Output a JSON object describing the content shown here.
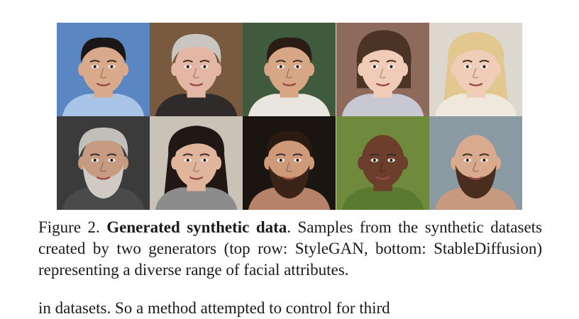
{
  "figure": {
    "rows": [
      {
        "faces": [
          {
            "bg": "#5a86c2",
            "skin": "#d9a98b",
            "hair": "#1b1716",
            "shirt": "#a9c4e6",
            "hair_style": "short-dark",
            "beard": false
          },
          {
            "bg": "#7a5a3e",
            "skin": "#e3b7a4",
            "hair": "#c9c6c2",
            "shirt": "#2e2b2a",
            "hair_style": "gray-swept",
            "beard": false
          },
          {
            "bg": "#3f5a3c",
            "skin": "#d7a685",
            "hair": "#2a1d16",
            "shirt": "#e9e6e0",
            "hair_style": "buzz",
            "beard": false
          },
          {
            "bg": "#8e6a5c",
            "skin": "#f0ccb8",
            "hair": "#4b3426",
            "shirt": "#c8c8d2",
            "hair_style": "bob",
            "beard": false
          },
          {
            "bg": "#dcd8d0",
            "skin": "#efcdb6",
            "hair": "#e2c88e",
            "shirt": "#efe8dc",
            "hair_style": "long-blonde",
            "beard": false
          }
        ]
      },
      {
        "faces": [
          {
            "bg": "#3b3b3c",
            "skin": "#c79b82",
            "hair": "#c2bfbb",
            "shirt": "#4a4a4a",
            "hair_style": "gray-swept",
            "beard": true,
            "beard_color": "#cfcac4"
          },
          {
            "bg": "#c9c2b6",
            "skin": "#e1b59c",
            "hair": "#211815",
            "shirt": "#8c8c8c",
            "hair_style": "long-dark",
            "beard": false
          },
          {
            "bg": "#1b1512",
            "skin": "#cf9a7a",
            "hair": "#2a1a12",
            "shirt": "#b7826a",
            "hair_style": "buzz",
            "beard": true,
            "beard_color": "#3a2418"
          },
          {
            "bg": "#6f8a3c",
            "skin": "#6b3f2c",
            "hair": "#6b3f2c",
            "shirt": "#5a7a30",
            "hair_style": "bald",
            "beard": false
          },
          {
            "bg": "#8a9aa2",
            "skin": "#d9aa8e",
            "hair": "#d9aa8e",
            "shirt": "#c79a80",
            "hair_style": "bald",
            "beard": true,
            "beard_color": "#4a2d1e"
          }
        ]
      }
    ]
  },
  "caption": {
    "label": "Figure 2.",
    "title": "Generated synthetic data",
    "body": ". Samples from the synthetic datasets created by two generators (top row: StyleGAN, bottom: StableDiffusion) representing a diverse range of facial attributes."
  },
  "next_paragraph": {
    "text": "in datasets. So a method attempted to control for third"
  }
}
